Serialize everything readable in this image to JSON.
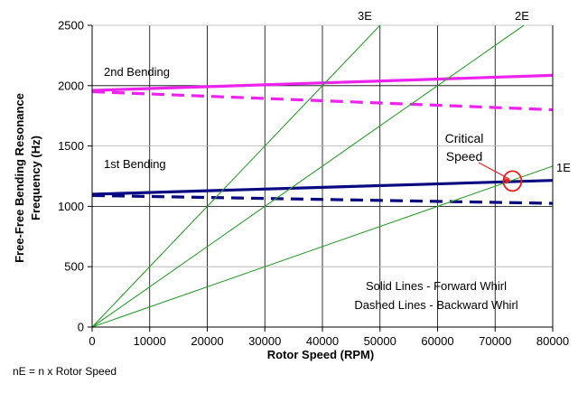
{
  "chart_data": {
    "type": "line",
    "xlabel": "Rotor Speed (RPM)",
    "ylabel": "Free-Free Bending Resonance Frequency (Hz)",
    "ylabel_lines": [
      "Free-Free Bending Resonance",
      "Frequency (Hz)"
    ],
    "xlim": [
      0,
      80000
    ],
    "ylim": [
      0,
      2500
    ],
    "xticks": [
      0,
      10000,
      20000,
      30000,
      40000,
      50000,
      60000,
      70000,
      80000
    ],
    "yticks": [
      0,
      500,
      1000,
      1500,
      2000,
      2500
    ],
    "grid": {
      "vertical": true,
      "horizontal_major": [
        1000,
        2000
      ],
      "horizontal_minor": [
        500,
        1500,
        2500
      ]
    },
    "series": [
      {
        "name": "2nd Bending",
        "style": "solid",
        "color": "#ee22ee",
        "x": [
          0,
          80000
        ],
        "y": [
          1960,
          2085
        ]
      },
      {
        "name": "",
        "style": "dashed",
        "color": "#ee22ee",
        "x": [
          0,
          80000
        ],
        "y": [
          1950,
          1800
        ]
      },
      {
        "name": "1st Bending",
        "style": "solid",
        "color": "#0a0a80",
        "x": [
          0,
          80000
        ],
        "y": [
          1100,
          1215
        ]
      },
      {
        "name": "",
        "style": "dashed",
        "color": "#0a0a80",
        "x": [
          0,
          80000
        ],
        "y": [
          1090,
          1025
        ]
      },
      {
        "name": "3E",
        "style": "thin",
        "color": "#2e9e2e",
        "x": [
          0,
          50000
        ],
        "y": [
          0,
          2500
        ]
      },
      {
        "name": "2E",
        "style": "thin",
        "color": "#2e9e2e",
        "x": [
          0,
          75000
        ],
        "y": [
          0,
          2500
        ]
      },
      {
        "name": "1E",
        "style": "thin",
        "color": "#2e9e2e",
        "x": [
          0,
          80000
        ],
        "y": [
          0,
          1333
        ]
      }
    ],
    "annotations": {
      "critical_label_line1": "Critical",
      "critical_label_line2": "Speed",
      "critical_point": {
        "x": 73000,
        "y": 1210
      },
      "critical_color": "#ee1c1c",
      "legend_line1": "Solid Lines - Forward Whirl",
      "legend_line2": "Dashed Lines - Backward Whirl",
      "footnote": "nE = n x Rotor Speed"
    }
  }
}
